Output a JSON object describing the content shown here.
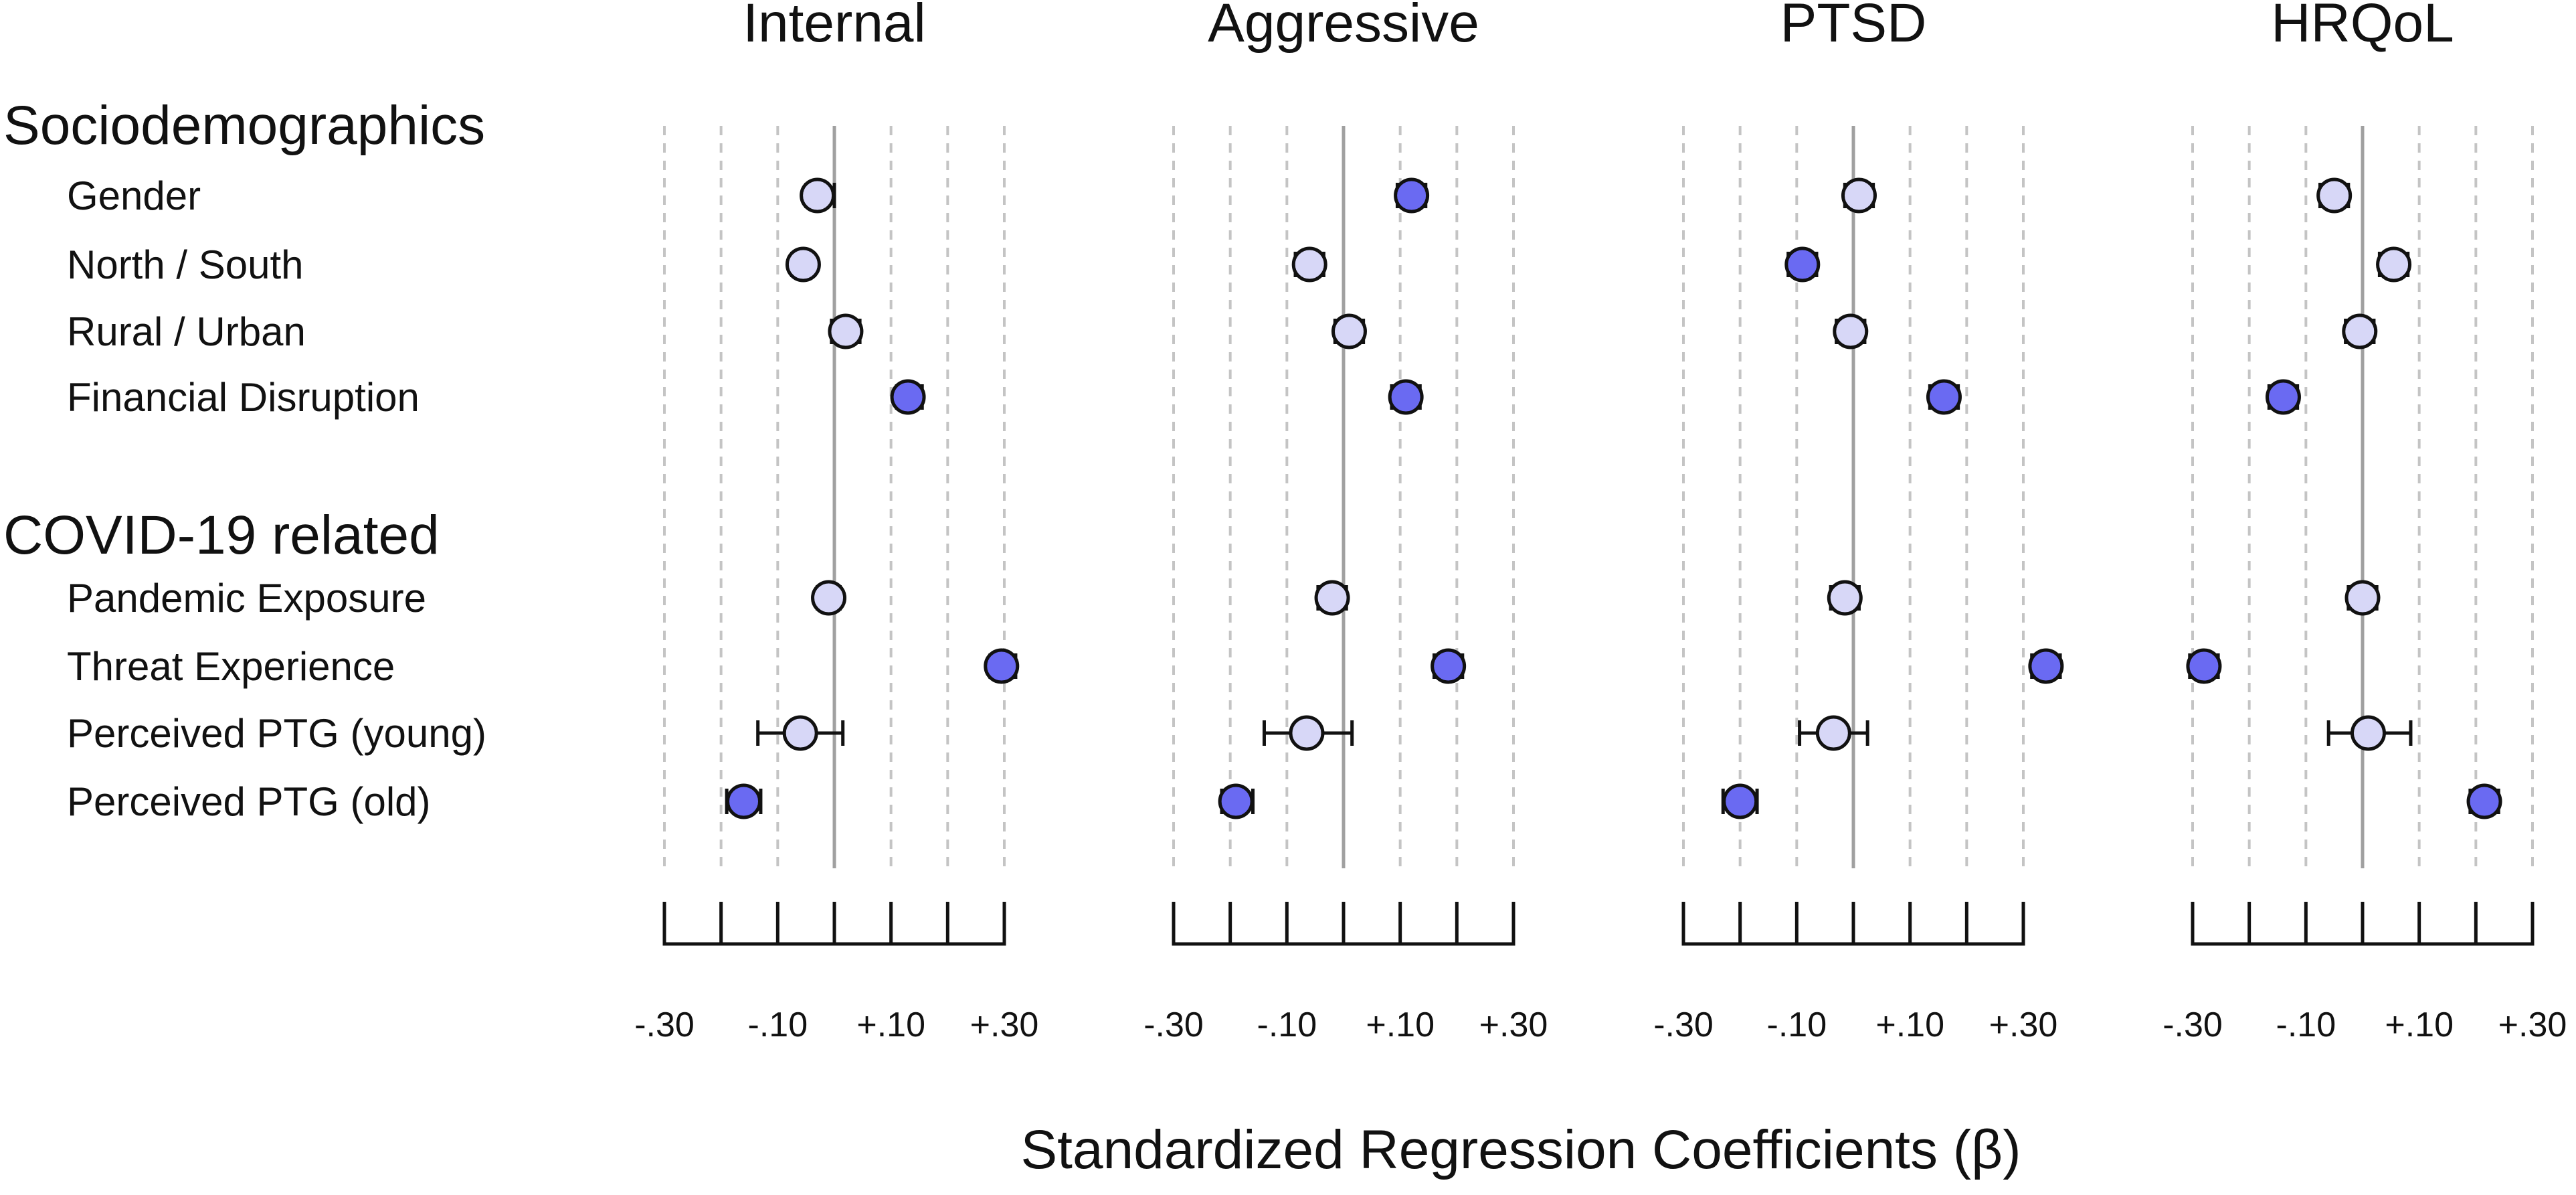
{
  "chart_data": {
    "type": "forest",
    "xlabel": "Standardized Regression Coefficients (β)",
    "xlim": [
      -0.3,
      0.3
    ],
    "ticks": [
      -0.3,
      -0.2,
      -0.1,
      0.0,
      0.1,
      0.2,
      0.3
    ],
    "tick_labels": [
      "-.30",
      "-.10",
      "+.10",
      "+.30"
    ],
    "tick_label_values": [
      -0.3,
      -0.1,
      0.1,
      0.3
    ],
    "colors": {
      "significant": "#6a6af2",
      "nonsignificant": "#d7d7f7",
      "zero_line": "#a0a0a0",
      "grid": "#c4c4c4"
    },
    "sections": [
      {
        "title": "Sociodemographics",
        "rows": [
          "Gender",
          "North / South",
          "Rural / Urban",
          "Financial Disruption"
        ]
      },
      {
        "title": "COVID-19 related",
        "rows": [
          "Pandemic Exposure",
          "Threat Experience",
          "Perceived PTG (young)",
          "Perceived PTG (old)"
        ]
      }
    ],
    "panels": [
      {
        "title": "Internal",
        "points": [
          {
            "row": "Gender",
            "beta": -0.03,
            "lo": -0.05,
            "hi": 0.0,
            "significant": false
          },
          {
            "row": "North / South",
            "beta": -0.055,
            "lo": -0.075,
            "hi": -0.035,
            "significant": false
          },
          {
            "row": "Rural / Urban",
            "beta": 0.02,
            "lo": -0.005,
            "hi": 0.045,
            "significant": false
          },
          {
            "row": "Financial Disruption",
            "beta": 0.13,
            "lo": 0.11,
            "hi": 0.155,
            "significant": true
          },
          {
            "row": "Pandemic Exposure",
            "beta": -0.01,
            "lo": -0.03,
            "hi": 0.01,
            "significant": false
          },
          {
            "row": "Threat Experience",
            "beta": 0.295,
            "lo": 0.275,
            "hi": 0.32,
            "significant": true
          },
          {
            "row": "Perceived PTG (young)",
            "beta": -0.06,
            "lo": -0.135,
            "hi": 0.015,
            "significant": false
          },
          {
            "row": "Perceived PTG (old)",
            "beta": -0.16,
            "lo": -0.19,
            "hi": -0.13,
            "significant": true
          }
        ]
      },
      {
        "title": "Aggressive",
        "points": [
          {
            "row": "Gender",
            "beta": 0.12,
            "lo": 0.095,
            "hi": 0.145,
            "significant": true
          },
          {
            "row": "North / South",
            "beta": -0.06,
            "lo": -0.085,
            "hi": -0.035,
            "significant": false
          },
          {
            "row": "Rural / Urban",
            "beta": 0.01,
            "lo": -0.015,
            "hi": 0.035,
            "significant": false
          },
          {
            "row": "Financial Disruption",
            "beta": 0.11,
            "lo": 0.085,
            "hi": 0.135,
            "significant": true
          },
          {
            "row": "Pandemic Exposure",
            "beta": -0.02,
            "lo": -0.045,
            "hi": 0.005,
            "significant": false
          },
          {
            "row": "Threat Experience",
            "beta": 0.185,
            "lo": 0.16,
            "hi": 0.21,
            "significant": true
          },
          {
            "row": "Perceived PTG (young)",
            "beta": -0.065,
            "lo": -0.14,
            "hi": 0.015,
            "significant": false
          },
          {
            "row": "Perceived PTG (old)",
            "beta": -0.19,
            "lo": -0.215,
            "hi": -0.16,
            "significant": true
          }
        ]
      },
      {
        "title": "PTSD",
        "points": [
          {
            "row": "Gender",
            "beta": 0.01,
            "lo": -0.015,
            "hi": 0.035,
            "significant": false
          },
          {
            "row": "North / South",
            "beta": -0.09,
            "lo": -0.115,
            "hi": -0.065,
            "significant": true
          },
          {
            "row": "Rural / Urban",
            "beta": -0.005,
            "lo": -0.03,
            "hi": 0.02,
            "significant": false
          },
          {
            "row": "Financial Disruption",
            "beta": 0.16,
            "lo": 0.135,
            "hi": 0.185,
            "significant": true
          },
          {
            "row": "Pandemic Exposure",
            "beta": -0.015,
            "lo": -0.04,
            "hi": 0.01,
            "significant": false
          },
          {
            "row": "Threat Experience",
            "beta": 0.34,
            "lo": 0.315,
            "hi": 0.365,
            "significant": true
          },
          {
            "row": "Perceived PTG (young)",
            "beta": -0.035,
            "lo": -0.095,
            "hi": 0.025,
            "significant": false
          },
          {
            "row": "Perceived PTG (old)",
            "beta": -0.2,
            "lo": -0.23,
            "hi": -0.17,
            "significant": true
          }
        ]
      },
      {
        "title": "HRQoL",
        "points": [
          {
            "row": "Gender",
            "beta": -0.05,
            "lo": -0.075,
            "hi": -0.025,
            "significant": false
          },
          {
            "row": "North / South",
            "beta": 0.055,
            "lo": 0.03,
            "hi": 0.08,
            "significant": false
          },
          {
            "row": "Rural / Urban",
            "beta": -0.005,
            "lo": -0.03,
            "hi": 0.02,
            "significant": false
          },
          {
            "row": "Financial Disruption",
            "beta": -0.14,
            "lo": -0.165,
            "hi": -0.115,
            "significant": true
          },
          {
            "row": "Pandemic Exposure",
            "beta": 0.0,
            "lo": -0.025,
            "hi": 0.025,
            "significant": false
          },
          {
            "row": "Threat Experience",
            "beta": -0.28,
            "lo": -0.305,
            "hi": -0.255,
            "significant": true
          },
          {
            "row": "Perceived PTG (young)",
            "beta": 0.01,
            "lo": -0.06,
            "hi": 0.085,
            "significant": false
          },
          {
            "row": "Perceived PTG (old)",
            "beta": 0.215,
            "lo": 0.19,
            "hi": 0.24,
            "significant": true
          }
        ]
      }
    ]
  }
}
